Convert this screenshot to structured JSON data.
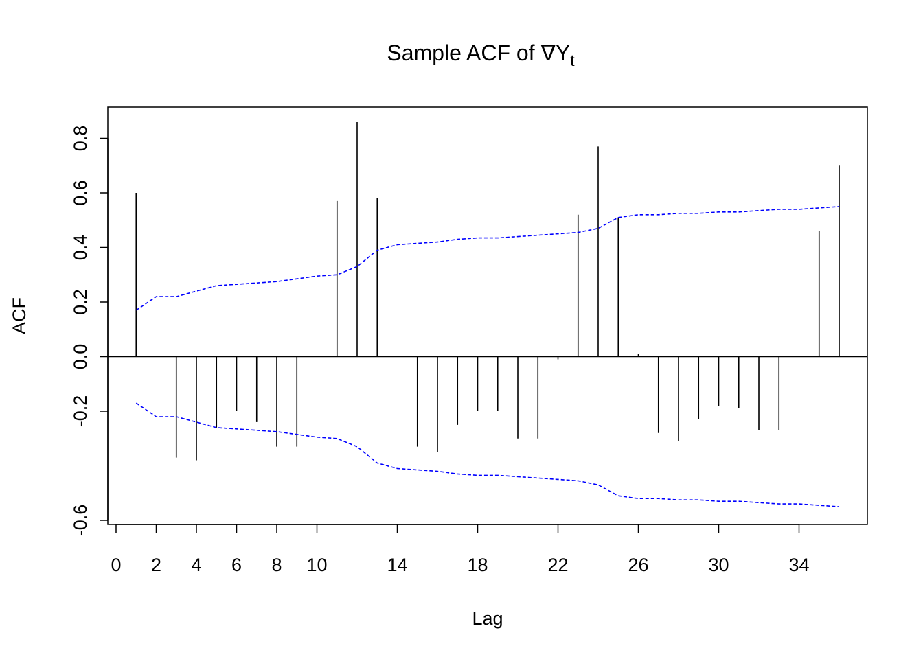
{
  "chart_data": {
    "type": "bar",
    "title": "Sample ACF of ∇Y",
    "title_subscript": "t",
    "xlabel": "Lag",
    "ylabel": "ACF",
    "xlim": [
      0,
      36
    ],
    "ylim": [
      -0.6,
      0.86
    ],
    "x_ticks": [
      0,
      2,
      4,
      6,
      8,
      10,
      14,
      18,
      22,
      26,
      30,
      34
    ],
    "y_ticks": [
      -0.6,
      -0.2,
      0.0,
      0.2,
      0.4,
      0.6,
      0.8
    ],
    "y_tick_labels": [
      "-0.6",
      "-0.2",
      "0.0",
      "0.2",
      "0.4",
      "0.6",
      "0.8"
    ],
    "grid": false,
    "lags": [
      1,
      2,
      3,
      4,
      5,
      6,
      7,
      8,
      9,
      10,
      11,
      12,
      13,
      14,
      15,
      16,
      17,
      18,
      19,
      20,
      21,
      22,
      23,
      24,
      25,
      26,
      27,
      28,
      29,
      30,
      31,
      32,
      33,
      34,
      35,
      36
    ],
    "acf": [
      0.6,
      0.0,
      -0.37,
      -0.38,
      -0.26,
      -0.2,
      -0.24,
      -0.33,
      -0.33,
      0.0,
      0.57,
      0.86,
      0.58,
      0.0,
      -0.33,
      -0.35,
      -0.25,
      -0.2,
      -0.2,
      -0.3,
      -0.3,
      -0.01,
      0.52,
      0.77,
      0.51,
      0.01,
      -0.28,
      -0.31,
      -0.23,
      -0.18,
      -0.19,
      -0.27,
      -0.27,
      0.0,
      0.46,
      0.7
    ],
    "confidence_band": {
      "lags": [
        1,
        2,
        3,
        4,
        5,
        6,
        7,
        8,
        9,
        10,
        11,
        12,
        13,
        14,
        15,
        16,
        17,
        18,
        19,
        20,
        21,
        22,
        23,
        24,
        25,
        26,
        27,
        28,
        29,
        30,
        31,
        32,
        33,
        34,
        35,
        36
      ],
      "upper": [
        0.17,
        0.22,
        0.22,
        0.24,
        0.26,
        0.265,
        0.27,
        0.275,
        0.285,
        0.295,
        0.3,
        0.33,
        0.39,
        0.41,
        0.415,
        0.42,
        0.43,
        0.435,
        0.435,
        0.44,
        0.445,
        0.45,
        0.455,
        0.47,
        0.51,
        0.52,
        0.52,
        0.525,
        0.525,
        0.53,
        0.53,
        0.535,
        0.54,
        0.54,
        0.545,
        0.55
      ],
      "color": "#0000ff",
      "style": "dashed"
    },
    "bar_color": "#000000"
  }
}
